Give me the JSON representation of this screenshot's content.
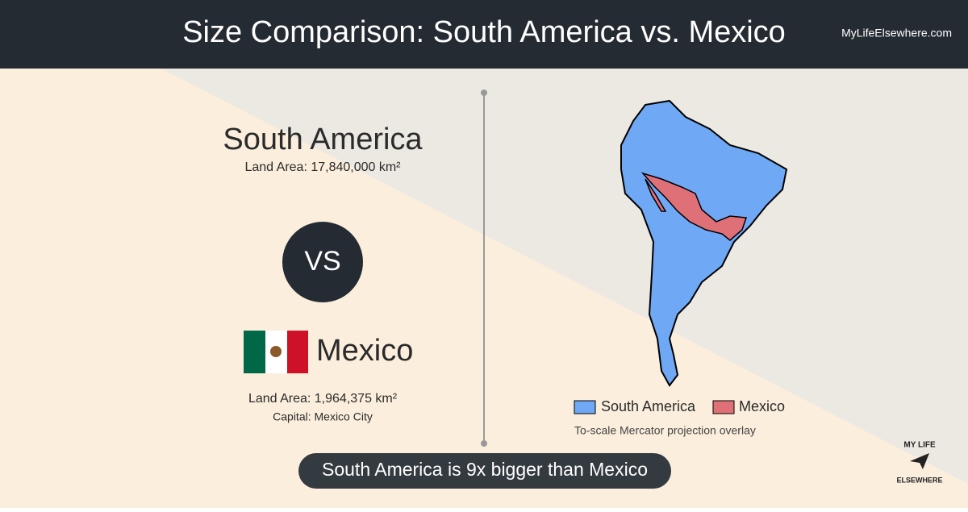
{
  "header": {
    "title": "Size Comparison: South America vs. Mexico",
    "site": "MyLifeElsewhere.com"
  },
  "first": {
    "name": "South America",
    "area": "Land Area: 17,840,000 km²"
  },
  "versus": "VS",
  "second": {
    "name": "Mexico",
    "area": "Land Area: 1,964,375 km²",
    "capital": "Capital: Mexico City"
  },
  "legend": {
    "items": [
      "South America",
      "Mexico"
    ],
    "caption": "To-scale Mercator projection overlay"
  },
  "banner": "South America is 9x bigger than Mexico",
  "logo": {
    "top": "MY LIFE",
    "bottom": "ELSEWHERE"
  }
}
